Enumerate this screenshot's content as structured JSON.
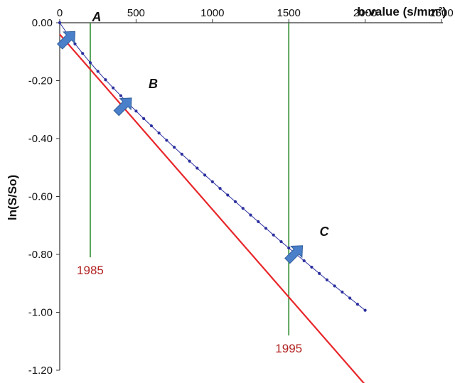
{
  "chart_data": {
    "type": "line",
    "xlabel": "b-value (s/mm²)",
    "ylabel": "ln(S/So)",
    "xlim": [
      0,
      2500
    ],
    "ylim": [
      -1.2,
      0.0
    ],
    "x_tick_labels": [
      "0",
      "500",
      "1000",
      "1500",
      "2000",
      "2500"
    ],
    "y_tick_labels": [
      "0.00",
      "-0.20",
      "-0.40",
      "-0.60",
      "-0.80",
      "-1.00",
      "-1.20"
    ],
    "x_tick_values": [
      0,
      500,
      1000,
      1500,
      2000,
      2500
    ],
    "y_tick_values": [
      0.0,
      -0.2,
      -0.4,
      -0.6,
      -0.8,
      -1.0,
      -1.2
    ],
    "series": [
      {
        "color": "#2b2f9e",
        "style": "dotted-line",
        "x": [
          0,
          50,
          100,
          150,
          200,
          250,
          300,
          350,
          400,
          450,
          500,
          550,
          600,
          650,
          700,
          750,
          800,
          850,
          900,
          950,
          1000,
          1050,
          1100,
          1150,
          1200,
          1250,
          1300,
          1350,
          1400,
          1450,
          1500,
          1550,
          1600,
          1650,
          1700,
          1750,
          1800,
          1850,
          1900,
          1950,
          2000
        ],
        "y": [
          0.0,
          -0.038,
          -0.073,
          -0.106,
          -0.138,
          -0.168,
          -0.197,
          -0.225,
          -0.252,
          -0.279,
          -0.305,
          -0.331,
          -0.356,
          -0.381,
          -0.406,
          -0.43,
          -0.454,
          -0.478,
          -0.502,
          -0.526,
          -0.549,
          -0.572,
          -0.595,
          -0.618,
          -0.641,
          -0.664,
          -0.687,
          -0.71,
          -0.733,
          -0.756,
          -0.778,
          -0.8,
          -0.822,
          -0.844,
          -0.866,
          -0.888,
          -0.909,
          -0.93,
          -0.951,
          -0.972,
          -0.993
        ]
      },
      {
        "color": "#e8262a",
        "style": "line",
        "x": [
          0,
          2050
        ],
        "y": [
          -0.04,
          -1.28
        ]
      }
    ],
    "vertical_lines": [
      {
        "x": 200,
        "y_top": 0.0,
        "y_bottom": -0.81,
        "label": "1985",
        "color": "#2e8b2e"
      },
      {
        "x": 1500,
        "y_top": 0.0,
        "y_bottom": -1.08,
        "label": "1995",
        "color": "#2e8b2e"
      }
    ],
    "annotations": [
      {
        "text": "A",
        "x": 100,
        "y": -0.03
      },
      {
        "text": "B",
        "x": 470,
        "y": -0.26
      },
      {
        "text": "C",
        "x": 1590,
        "y": -0.77
      }
    ],
    "grid": false
  }
}
